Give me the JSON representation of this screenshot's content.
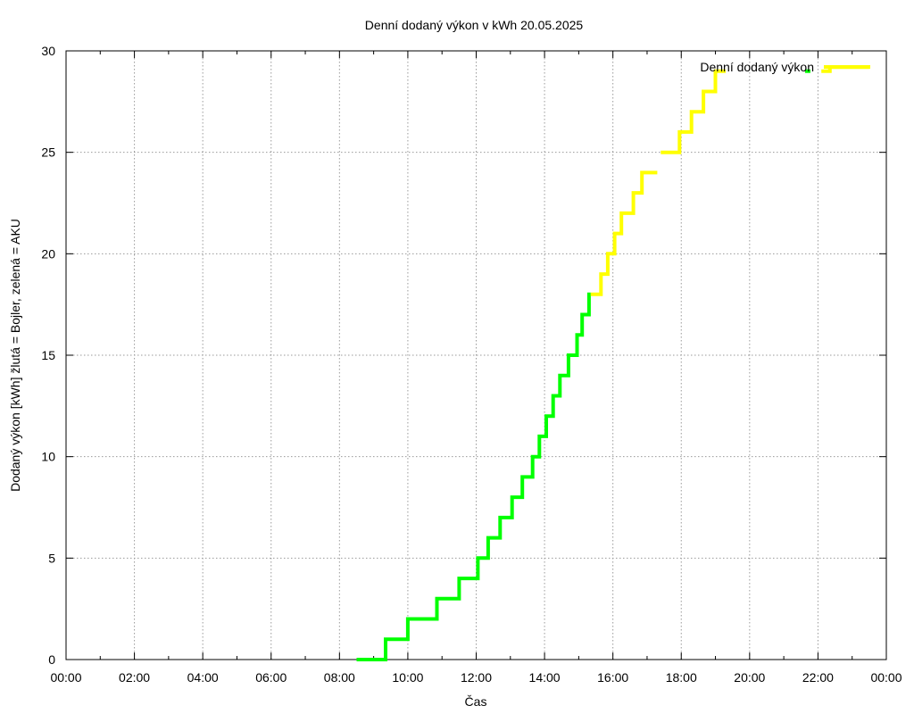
{
  "chart_data": {
    "type": "line",
    "title": "Denní dodaný výkon v kWh 20.05.2025",
    "xlabel": "Čas",
    "ylabel": "Dodaný výkon [kWh]  žlutá = Bojler, zelená = AKU",
    "xlim": [
      0,
      24
    ],
    "ylim": [
      0,
      30
    ],
    "x_ticks": [
      {
        "value": 0,
        "label": "00:00"
      },
      {
        "value": 2,
        "label": "02:00"
      },
      {
        "value": 4,
        "label": "04:00"
      },
      {
        "value": 6,
        "label": "06:00"
      },
      {
        "value": 8,
        "label": "08:00"
      },
      {
        "value": 10,
        "label": "10:00"
      },
      {
        "value": 12,
        "label": "12:00"
      },
      {
        "value": 14,
        "label": "14:00"
      },
      {
        "value": 16,
        "label": "16:00"
      },
      {
        "value": 18,
        "label": "18:00"
      },
      {
        "value": 20,
        "label": "20:00"
      },
      {
        "value": 22,
        "label": "22:00"
      },
      {
        "value": 24,
        "label": "00:00"
      }
    ],
    "y_ticks": [
      {
        "value": 0,
        "label": "0"
      },
      {
        "value": 5,
        "label": "5"
      },
      {
        "value": 10,
        "label": "10"
      },
      {
        "value": 15,
        "label": "15"
      },
      {
        "value": 20,
        "label": "20"
      },
      {
        "value": 25,
        "label": "25"
      },
      {
        "value": 30,
        "label": "30"
      }
    ],
    "grid": true,
    "legend": {
      "label": "Denní dodaný výkon",
      "placement": "top-right"
    },
    "series": [
      {
        "name": "AKU",
        "color": "#00ff00",
        "steps": [
          [
            8.5,
            9.35,
            0
          ],
          [
            9.35,
            10.0,
            1
          ],
          [
            10.0,
            10.85,
            2
          ],
          [
            10.85,
            11.5,
            3
          ],
          [
            11.5,
            12.05,
            4
          ],
          [
            12.05,
            12.35,
            5
          ],
          [
            12.35,
            12.7,
            6
          ],
          [
            12.7,
            13.05,
            7
          ],
          [
            13.05,
            13.35,
            8
          ],
          [
            13.35,
            13.65,
            9
          ],
          [
            13.65,
            13.85,
            10
          ],
          [
            13.85,
            14.05,
            11
          ],
          [
            14.05,
            14.25,
            12
          ],
          [
            14.25,
            14.45,
            13
          ],
          [
            14.45,
            14.7,
            14
          ],
          [
            14.7,
            14.95,
            15
          ],
          [
            14.95,
            15.1,
            16
          ],
          [
            15.1,
            15.3,
            17
          ],
          [
            15.3,
            15.35,
            18
          ]
        ],
        "isolated_points": [
          [
            21.7,
            29
          ]
        ]
      },
      {
        "name": "Bojler",
        "color": "#ffff00",
        "steps": [
          [
            15.35,
            15.65,
            18
          ],
          [
            15.65,
            15.85,
            19
          ],
          [
            15.85,
            16.05,
            20
          ],
          [
            16.05,
            16.25,
            21
          ],
          [
            16.25,
            16.6,
            22
          ],
          [
            16.6,
            16.85,
            23
          ],
          [
            16.85,
            17.3,
            24
          ],
          [
            17.4,
            17.95,
            25
          ],
          [
            17.95,
            18.3,
            26
          ],
          [
            18.3,
            18.65,
            27
          ],
          [
            18.65,
            19.0,
            28
          ],
          [
            19.0,
            19.3,
            29
          ],
          [
            22.1,
            22.35,
            29
          ],
          [
            22.35,
            23.5,
            29.2
          ]
        ]
      }
    ]
  }
}
